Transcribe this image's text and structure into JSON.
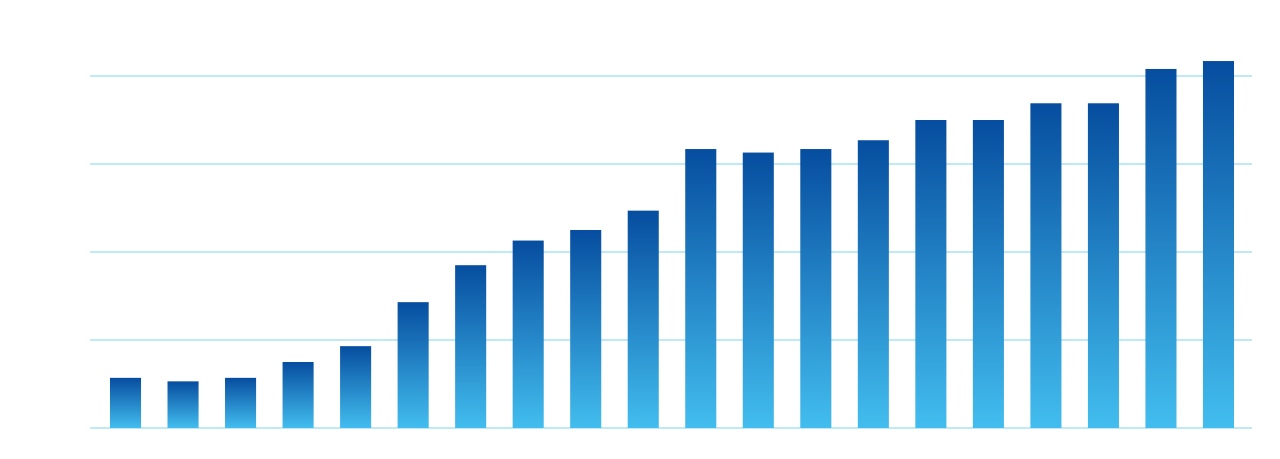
{
  "chart_data": {
    "type": "bar",
    "categories": [
      null,
      null,
      null,
      null,
      null,
      null,
      null,
      null,
      null,
      null,
      null,
      null,
      null,
      null,
      null,
      null,
      null,
      null,
      null,
      null
    ],
    "values": [
      0.57,
      0.53,
      0.57,
      0.75,
      0.93,
      1.43,
      1.85,
      2.13,
      2.25,
      2.47,
      3.17,
      3.13,
      3.17,
      3.27,
      3.5,
      3.5,
      3.69,
      3.69,
      4.08,
      4.17
    ],
    "gradient": [
      "#064d9f",
      "#42bdee"
    ],
    "grid_color": "#7fd3ea",
    "ylim": [
      0,
      4.5
    ],
    "yticks": [
      0,
      1,
      2,
      3,
      4
    ],
    "grid": true
  }
}
